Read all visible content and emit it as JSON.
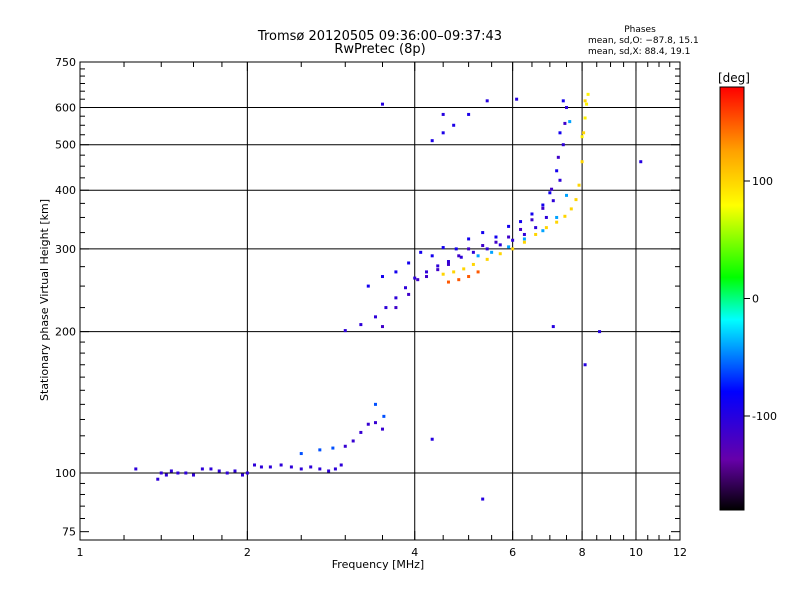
{
  "chart_data": {
    "type": "scatter",
    "title": "Tromsø 20120505 09:36:00–09:37:43",
    "subtitle": "RwPretec (8p)",
    "xlabel": "Frequency [MHz]",
    "ylabel": "Stationary phase Virtual Height [km]",
    "x_scale": "log",
    "y_scale": "log",
    "xlim": [
      1,
      12
    ],
    "ylim": [
      72,
      750
    ],
    "grid": true,
    "x_major_ticks": [
      1,
      2,
      4,
      6,
      8,
      10,
      12
    ],
    "x_minor_ticks": [
      1.2,
      1.4,
      1.6,
      1.8,
      2.5,
      3,
      3.5,
      4.5,
      5,
      5.5,
      6.5,
      7,
      7.5,
      8.5,
      9,
      9.5,
      10.5,
      11,
      11.5
    ],
    "x_grid_lines": [
      2,
      4,
      6,
      8,
      10
    ],
    "y_major_ticks": [
      75,
      100,
      200,
      300,
      400,
      500,
      600,
      750
    ],
    "y_minor_ticks": [
      80,
      85,
      90,
      95,
      110,
      120,
      130,
      140,
      150,
      160,
      170,
      180,
      190,
      225,
      250,
      275,
      325,
      350,
      375,
      425,
      450,
      475,
      525,
      550,
      575,
      625,
      650,
      675,
      700,
      725
    ],
    "y_grid_lines": [
      100,
      200,
      300,
      400,
      500,
      600
    ],
    "stats": {
      "header": "Phases",
      "line1": "mean, sd,O: −87.8, 15.1",
      "line2": "mean, sd,X:  88.4, 19.1"
    },
    "colorbar": {
      "label": "[deg]",
      "min": -180,
      "max": 180,
      "ticks": [
        100,
        0,
        -100
      ],
      "colors": [
        "#000000",
        "#6600aa",
        "#0000ff",
        "#00ffff",
        "#00ff00",
        "#ffff00",
        "#ffa000",
        "#ff0000"
      ]
    },
    "series": [
      {
        "x": [
          1.26,
          1.38,
          1.4,
          1.43,
          1.46,
          1.5,
          1.55,
          1.6,
          1.66,
          1.72,
          1.78,
          1.84,
          1.9,
          1.96,
          2.0,
          2.06,
          2.12,
          2.2,
          2.3,
          2.4,
          2.5,
          2.6,
          2.7,
          2.8,
          2.88,
          2.95
        ],
        "y": [
          102,
          97,
          100,
          99,
          101,
          100,
          100,
          99,
          102,
          102,
          101,
          100,
          101,
          99,
          100,
          104,
          103,
          103,
          104,
          103,
          102,
          103,
          102,
          101,
          102,
          104
        ],
        "phase": -105
      },
      {
        "x": [
          3.0,
          3.1,
          3.2,
          3.3,
          3.4,
          3.5
        ],
        "y": [
          114,
          117,
          122,
          127,
          128,
          124
        ],
        "phase": -110
      },
      {
        "x": [
          2.5,
          2.7,
          2.85,
          3.4,
          3.52
        ],
        "y": [
          110,
          112,
          113,
          140,
          132
        ],
        "phase": -60
      },
      {
        "x": [
          3.0,
          3.2,
          3.4,
          3.55,
          3.7,
          3.85,
          4.0,
          4.2,
          4.4,
          4.6,
          4.85,
          5.1,
          5.4,
          5.7,
          6.0,
          6.3,
          6.6,
          6.9,
          7.1,
          7.3,
          7.4,
          7.5
        ],
        "y": [
          201,
          207,
          215,
          225,
          236,
          248,
          260,
          268,
          276,
          282,
          288,
          295,
          300,
          306,
          313,
          322,
          333,
          350,
          380,
          420,
          500,
          600
        ],
        "phase": -105
      },
      {
        "x": [
          3.3,
          3.5,
          3.7,
          3.9,
          4.1,
          4.3,
          4.5,
          4.75,
          5.0,
          5.3,
          5.6,
          5.9,
          6.2,
          6.5,
          6.8,
          7.0,
          7.2,
          7.3,
          7.4
        ],
        "y": [
          250,
          262,
          268,
          280,
          295,
          290,
          302,
          300,
          315,
          325,
          318,
          335,
          343,
          356,
          372,
          395,
          440,
          530,
          620
        ],
        "phase": -90
      },
      {
        "x": [
          3.5,
          3.7,
          3.9,
          4.05,
          4.2,
          4.4,
          4.6,
          4.8,
          5.0,
          5.3,
          5.6,
          5.9,
          6.2,
          6.5,
          6.8,
          7.05,
          7.25,
          7.45
        ],
        "y": [
          205,
          225,
          240,
          258,
          262,
          271,
          278,
          290,
          300,
          305,
          310,
          318,
          330,
          346,
          366,
          402,
          470,
          555
        ],
        "phase": -115
      },
      {
        "x": [
          4.3,
          4.5,
          4.7,
          5.0
        ],
        "y": [
          510,
          530,
          550,
          580
        ],
        "phase": -95
      },
      {
        "x": [
          5.2,
          5.5,
          5.9,
          6.3,
          6.8,
          7.2,
          7.5,
          7.6
        ],
        "y": [
          290,
          295,
          303,
          315,
          328,
          350,
          390,
          560
        ],
        "phase": -40
      },
      {
        "x": [
          4.5,
          4.7,
          4.9,
          5.1,
          5.4,
          5.7,
          6.0,
          6.3,
          6.6,
          6.9,
          7.2,
          7.45,
          7.65,
          7.8,
          7.9,
          8.0,
          8.05,
          8.1
        ],
        "y": [
          265,
          268,
          272,
          278,
          285,
          293,
          300,
          310,
          322,
          333,
          342,
          352,
          365,
          382,
          410,
          460,
          530,
          620
        ],
        "phase": 100
      },
      {
        "x": [
          4.6,
          4.8,
          5.0,
          5.2
        ],
        "y": [
          255,
          258,
          262,
          268
        ],
        "phase": 150
      },
      {
        "x": [
          8.0,
          8.1,
          8.15,
          8.2
        ],
        "y": [
          520,
          570,
          610,
          640
        ],
        "phase": 85
      },
      {
        "x": [
          3.5,
          4.5,
          5.4,
          6.1,
          7.1,
          8.1,
          8.6,
          10.2,
          4.3,
          5.3
        ],
        "y": [
          610,
          580,
          620,
          625,
          205,
          170,
          200,
          460,
          118,
          88
        ],
        "phase": -100
      }
    ]
  }
}
